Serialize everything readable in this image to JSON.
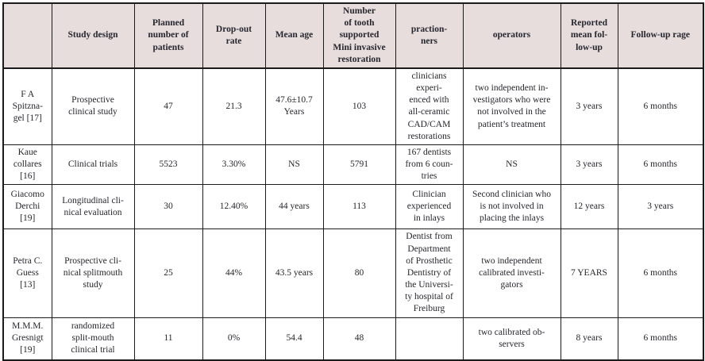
{
  "colors": {
    "header_bg": "#e7dddd",
    "body_bg": "#ffffff",
    "border": "#1b1b1b",
    "text": "#26262e"
  },
  "table": {
    "columns": [
      "",
      "Study design",
      "Planned\nnumber of\npatients",
      "Drop-out\nrate",
      "Mean age",
      "Number\nof tooth\nsupported\nMini invasive\nrestoration",
      "praction-\nners",
      "operators",
      "Reported\nmean fol-\nlow-up",
      "Follow-up rage"
    ],
    "rows": [
      [
        "F A\nSpitzna-\ngel [17]",
        "Prospective\nclinical study",
        "47",
        "21.3",
        "47.6±10.7\nYears",
        "103",
        "clinicians\nexperi-\nenced with\nall-ceramic\nCAD/CAM\nrestorations",
        "two independent in-\nvestigators who were\nnot involved in the\npatient’s treatment",
        "3 years",
        "6 months"
      ],
      [
        "Kaue\ncollares\n[16]",
        "Clinical trials",
        "5523",
        "3.30%",
        "NS",
        "5791",
        "167 dentists\nfrom 6 coun-\ntries",
        "NS",
        "3 years",
        "6 months"
      ],
      [
        "Giacomo\nDerchi\n[19]",
        "Longitudinal cli-\nnical evaluation",
        "30",
        "12.40%",
        "44 years",
        "113",
        "Clinician\nexperienced\nin inlays",
        "Second clinician who\nis not involved in\nplacing the inlays",
        "12 years",
        "3 years"
      ],
      [
        "Petra C.\nGuess\n[13]",
        "Prospective cli-\nnical splitmouth\nstudy",
        "25",
        "44%",
        "43.5 years",
        "80",
        "Dentist from\nDepartment\nof Prosthetic\nDentistry of\nthe Universi-\nty hospital of\nFreiburg",
        "two independent\ncalibrated investi-\ngators",
        "7 YEARS",
        "6 months"
      ],
      [
        "M.M.M.\nGresnigt\n[19]",
        "randomized\nsplit-mouth\nclinical trial",
        "11",
        "0%",
        "54.4",
        "48",
        "",
        "two calibrated ob-\nservers",
        "8 years",
        "6 months"
      ]
    ]
  }
}
